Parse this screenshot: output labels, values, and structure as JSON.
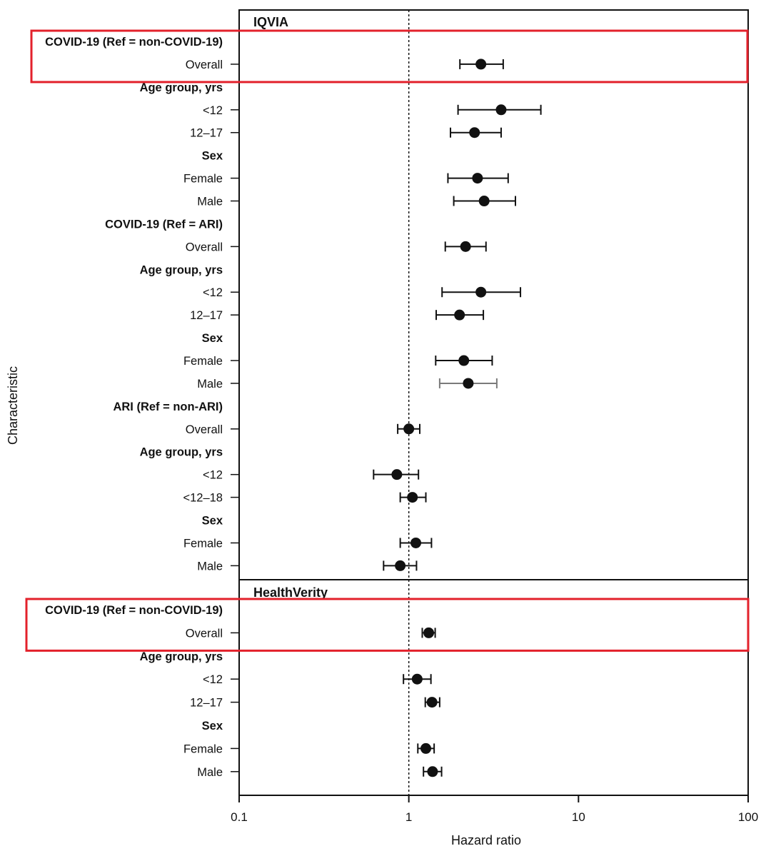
{
  "chart_data": {
    "type": "forest",
    "xlabel": "Hazard ratio",
    "ylabel": "Characteristic",
    "xscale": "log",
    "xlim": [
      0.1,
      100
    ],
    "xticks": [
      {
        "value": 0.1,
        "label": "0.1"
      },
      {
        "value": 1,
        "label": "1"
      },
      {
        "value": 10,
        "label": "10"
      },
      {
        "value": 100,
        "label": "100"
      }
    ],
    "reference_line": 1,
    "panels": [
      {
        "title": "IQVIA",
        "rows": [
          {
            "label": "COVID-19 (Ref = non-COVID-19)",
            "header": true,
            "highlight_group": 1
          },
          {
            "label": "Overall",
            "hr": 2.66,
            "lo": 2.0,
            "hi": 3.6,
            "highlight_group": 1
          },
          {
            "label": "Age group, yrs",
            "header": true
          },
          {
            "label": "<12",
            "hr": 3.5,
            "lo": 1.95,
            "hi": 6.0
          },
          {
            "label": "12–17",
            "hr": 2.44,
            "lo": 1.76,
            "hi": 3.5
          },
          {
            "label": "Sex",
            "header": true
          },
          {
            "label": "Female",
            "hr": 2.54,
            "lo": 1.7,
            "hi": 3.85
          },
          {
            "label": "Male",
            "hr": 2.78,
            "lo": 1.84,
            "hi": 4.25
          },
          {
            "label": "COVID-19 (Ref = ARI)",
            "header": true
          },
          {
            "label": "Overall",
            "hr": 2.16,
            "lo": 1.64,
            "hi": 2.85
          },
          {
            "label": "Age group, yrs",
            "header": true
          },
          {
            "label": "<12",
            "hr": 2.66,
            "lo": 1.57,
            "hi": 4.55
          },
          {
            "label": "12–17",
            "hr": 1.99,
            "lo": 1.45,
            "hi": 2.75
          },
          {
            "label": "Sex",
            "header": true
          },
          {
            "label": "Female",
            "hr": 2.11,
            "lo": 1.44,
            "hi": 3.1
          },
          {
            "label": "Male",
            "hr": 2.24,
            "lo": 1.52,
            "hi": 3.3,
            "grey": true
          },
          {
            "label": "ARI (Ref = non-ARI)",
            "header": true
          },
          {
            "label": "Overall",
            "hr": 1.0,
            "lo": 0.86,
            "hi": 1.16
          },
          {
            "label": "Age group, yrs",
            "header": true
          },
          {
            "label": "<12",
            "hr": 0.85,
            "lo": 0.62,
            "hi": 1.14
          },
          {
            "label": "<12–18",
            "hr": 1.05,
            "lo": 0.89,
            "hi": 1.26
          },
          {
            "label": "Sex",
            "header": true
          },
          {
            "label": "Female",
            "hr": 1.1,
            "lo": 0.89,
            "hi": 1.36
          },
          {
            "label": "Male",
            "hr": 0.89,
            "lo": 0.71,
            "hi": 1.11
          }
        ]
      },
      {
        "title": "HealthVerity",
        "rows": [
          {
            "label": "COVID-19 (Ref = non-COVID-19)",
            "header": true,
            "highlight_group": 2
          },
          {
            "label": "Overall",
            "hr": 1.31,
            "lo": 1.2,
            "hi": 1.43,
            "highlight_group": 2
          },
          {
            "label": "Age group, yrs",
            "header": true
          },
          {
            "label": "<12",
            "hr": 1.12,
            "lo": 0.93,
            "hi": 1.35
          },
          {
            "label": "12–17",
            "hr": 1.37,
            "lo": 1.25,
            "hi": 1.52
          },
          {
            "label": "Sex",
            "header": true
          },
          {
            "label": "Female",
            "hr": 1.26,
            "lo": 1.13,
            "hi": 1.41
          },
          {
            "label": "Male",
            "hr": 1.38,
            "lo": 1.22,
            "hi": 1.56
          }
        ]
      }
    ]
  },
  "colors": {
    "highlight": "#e3212b",
    "ink": "#111111",
    "grey_ci": "#7a7a7a"
  }
}
